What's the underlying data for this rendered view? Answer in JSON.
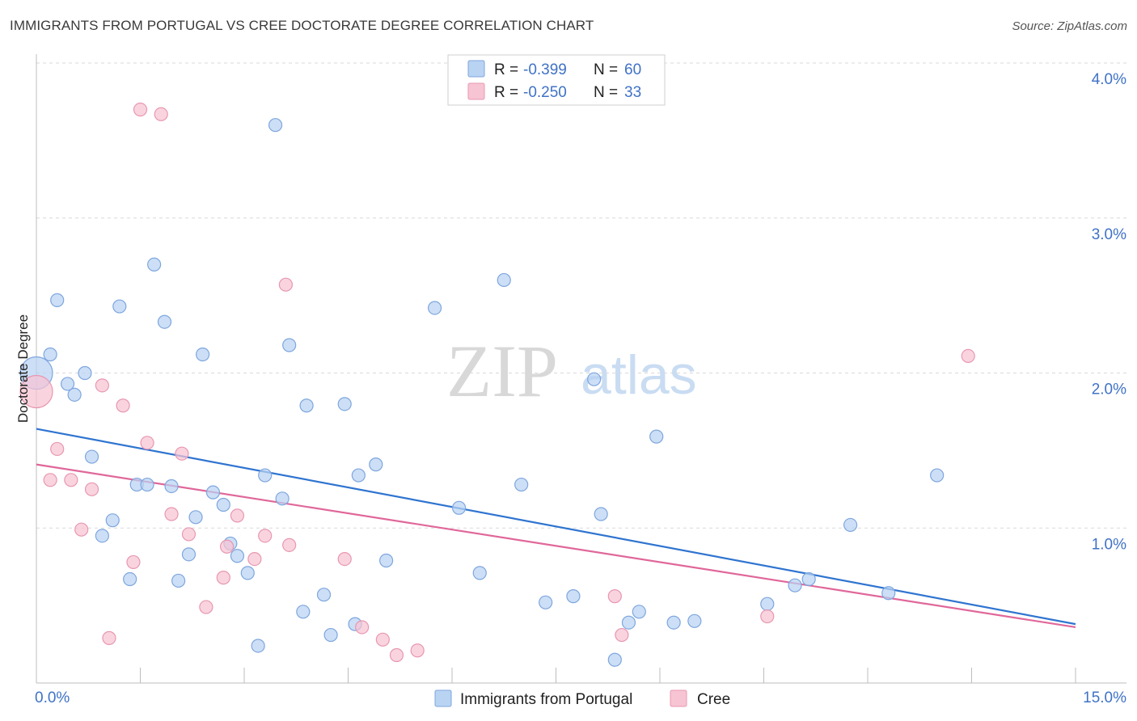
{
  "title": "IMMIGRANTS FROM PORTUGAL VS CREE DOCTORATE DEGREE CORRELATION CHART",
  "source": "Source: ZipAtlas.com",
  "watermark": {
    "zip": "ZIP",
    "atlas": "atlas"
  },
  "colors": {
    "blue_fill": "#b9d3f3",
    "blue_stroke": "#7ea6de",
    "blue_line": "#2f74d0",
    "pink_fill": "#f7c4d3",
    "pink_stroke": "#e897b1",
    "pink_line": "#e0679a",
    "accent_text": "#3f72c6"
  },
  "legend": {
    "rows": [
      {
        "r_label": "R =",
        "r_value": "-0.399",
        "n_label": "N =",
        "n_value": "60"
      },
      {
        "r_label": "R =",
        "r_value": "-0.250",
        "n_label": "N =",
        "n_value": "33"
      }
    ]
  },
  "chart_data": {
    "type": "scatter",
    "ylabel": "Doctorate Degree",
    "xlim": [
      0,
      15
    ],
    "ylim": [
      0,
      4.1
    ],
    "x_tick_labels": [
      {
        "value": 0,
        "label": "0.0%"
      },
      {
        "value": 15,
        "label": "15.0%"
      }
    ],
    "y_ticks": [
      {
        "value": 1,
        "label": "1.0%"
      },
      {
        "value": 2,
        "label": "2.0%"
      },
      {
        "value": 3,
        "label": "3.0%"
      },
      {
        "value": 4,
        "label": "4.0%"
      }
    ],
    "grid": true,
    "legend_position": "bottom",
    "series": [
      {
        "name": "Immigrants from Portugal",
        "trend": {
          "x": [
            0,
            15
          ],
          "y": [
            1.64,
            0.38
          ]
        },
        "points": [
          {
            "x": 0.0,
            "y": 2.0,
            "big": true
          },
          {
            "x": 0.2,
            "y": 2.12
          },
          {
            "x": 0.3,
            "y": 2.47
          },
          {
            "x": 0.45,
            "y": 1.93
          },
          {
            "x": 0.55,
            "y": 1.86
          },
          {
            "x": 0.7,
            "y": 2.0
          },
          {
            "x": 0.8,
            "y": 1.46
          },
          {
            "x": 0.95,
            "y": 0.95
          },
          {
            "x": 1.1,
            "y": 1.05
          },
          {
            "x": 1.2,
            "y": 2.43
          },
          {
            "x": 1.35,
            "y": 0.67
          },
          {
            "x": 1.45,
            "y": 1.28
          },
          {
            "x": 1.6,
            "y": 1.28
          },
          {
            "x": 1.7,
            "y": 2.7
          },
          {
            "x": 1.85,
            "y": 2.33
          },
          {
            "x": 1.95,
            "y": 1.27
          },
          {
            "x": 2.05,
            "y": 0.66
          },
          {
            "x": 2.2,
            "y": 0.83
          },
          {
            "x": 2.3,
            "y": 1.07
          },
          {
            "x": 2.4,
            "y": 2.12
          },
          {
            "x": 2.55,
            "y": 1.23
          },
          {
            "x": 2.7,
            "y": 1.15
          },
          {
            "x": 2.8,
            "y": 0.9
          },
          {
            "x": 2.9,
            "y": 0.82
          },
          {
            "x": 3.05,
            "y": 0.71
          },
          {
            "x": 3.2,
            "y": 0.24
          },
          {
            "x": 3.3,
            "y": 1.34
          },
          {
            "x": 3.45,
            "y": 3.6
          },
          {
            "x": 3.55,
            "y": 1.19
          },
          {
            "x": 3.65,
            "y": 2.18
          },
          {
            "x": 3.85,
            "y": 0.46
          },
          {
            "x": 3.9,
            "y": 1.79
          },
          {
            "x": 4.15,
            "y": 0.57
          },
          {
            "x": 4.25,
            "y": 0.31
          },
          {
            "x": 4.45,
            "y": 1.8
          },
          {
            "x": 4.6,
            "y": 0.38
          },
          {
            "x": 4.65,
            "y": 1.34
          },
          {
            "x": 4.9,
            "y": 1.41
          },
          {
            "x": 5.05,
            "y": 0.79
          },
          {
            "x": 5.75,
            "y": 2.42
          },
          {
            "x": 6.1,
            "y": 1.13
          },
          {
            "x": 6.4,
            "y": 0.71
          },
          {
            "x": 6.75,
            "y": 2.6
          },
          {
            "x": 7.0,
            "y": 1.28
          },
          {
            "x": 7.35,
            "y": 0.52
          },
          {
            "x": 7.75,
            "y": 0.56
          },
          {
            "x": 8.05,
            "y": 1.96
          },
          {
            "x": 8.15,
            "y": 1.09
          },
          {
            "x": 8.35,
            "y": 0.15
          },
          {
            "x": 8.55,
            "y": 0.39
          },
          {
            "x": 8.7,
            "y": 0.46
          },
          {
            "x": 8.95,
            "y": 1.59
          },
          {
            "x": 9.2,
            "y": 0.39
          },
          {
            "x": 9.5,
            "y": 0.4
          },
          {
            "x": 10.55,
            "y": 0.51
          },
          {
            "x": 10.95,
            "y": 0.63
          },
          {
            "x": 11.15,
            "y": 0.67
          },
          {
            "x": 11.75,
            "y": 1.02
          },
          {
            "x": 12.3,
            "y": 0.58
          },
          {
            "x": 13.0,
            "y": 1.34
          }
        ]
      },
      {
        "name": "Cree",
        "trend": {
          "x": [
            0,
            15
          ],
          "y": [
            1.41,
            0.36
          ]
        },
        "points": [
          {
            "x": 0.0,
            "y": 1.88,
            "big": true
          },
          {
            "x": 0.2,
            "y": 1.31
          },
          {
            "x": 0.3,
            "y": 1.51
          },
          {
            "x": 0.5,
            "y": 1.31
          },
          {
            "x": 0.65,
            "y": 0.99
          },
          {
            "x": 0.8,
            "y": 1.25
          },
          {
            "x": 0.95,
            "y": 1.92
          },
          {
            "x": 1.05,
            "y": 0.29
          },
          {
            "x": 1.25,
            "y": 1.79
          },
          {
            "x": 1.4,
            "y": 0.78
          },
          {
            "x": 1.5,
            "y": 3.7
          },
          {
            "x": 1.6,
            "y": 1.55
          },
          {
            "x": 1.8,
            "y": 3.67
          },
          {
            "x": 1.95,
            "y": 1.09
          },
          {
            "x": 2.1,
            "y": 1.48
          },
          {
            "x": 2.2,
            "y": 0.96
          },
          {
            "x": 2.45,
            "y": 0.49
          },
          {
            "x": 2.7,
            "y": 0.68
          },
          {
            "x": 2.75,
            "y": 0.88
          },
          {
            "x": 2.9,
            "y": 1.08
          },
          {
            "x": 3.15,
            "y": 0.8
          },
          {
            "x": 3.3,
            "y": 0.95
          },
          {
            "x": 3.6,
            "y": 2.57
          },
          {
            "x": 3.65,
            "y": 0.89
          },
          {
            "x": 4.45,
            "y": 0.8
          },
          {
            "x": 4.7,
            "y": 0.36
          },
          {
            "x": 5.0,
            "y": 0.28
          },
          {
            "x": 5.2,
            "y": 0.18
          },
          {
            "x": 5.5,
            "y": 0.21
          },
          {
            "x": 8.35,
            "y": 0.56
          },
          {
            "x": 8.45,
            "y": 0.31
          },
          {
            "x": 10.55,
            "y": 0.43
          },
          {
            "x": 13.45,
            "y": 2.11
          }
        ]
      }
    ]
  }
}
